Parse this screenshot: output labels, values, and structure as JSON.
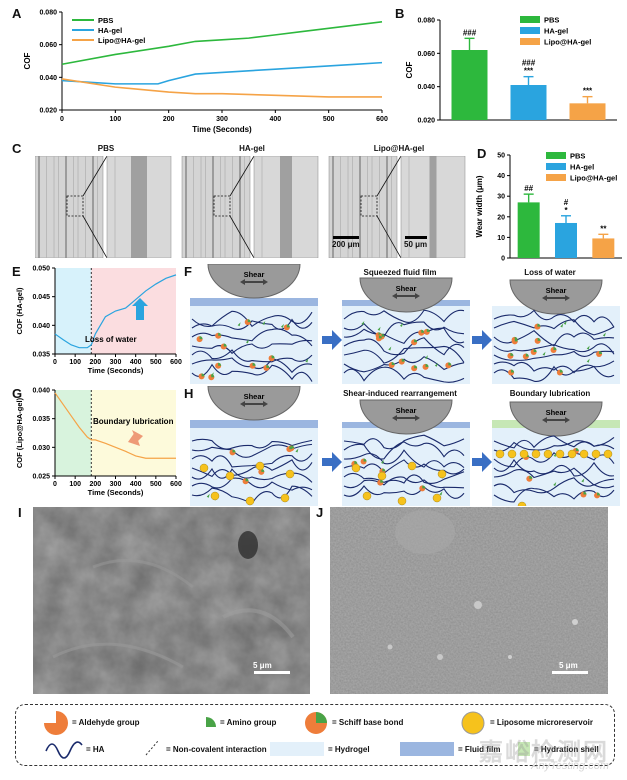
{
  "panels": {
    "A": "A",
    "B": "B",
    "C": "C",
    "D": "D",
    "E": "E",
    "F": "F",
    "G": "G",
    "H": "H",
    "I": "I",
    "J": "J"
  },
  "colors": {
    "pbs": "#2db83d",
    "hagel": "#2aa4df",
    "lipo": "#f5a347",
    "hydrogel": "#e3f0fa",
    "fluid": "#9bb6e0",
    "hydration": "#c6e7b5",
    "arrow": "#3a6fc4"
  },
  "chart_data": [
    {
      "type": "line",
      "ylabel": "COF",
      "xlabel": "Time (Seconds)",
      "xlim": [
        0,
        600
      ],
      "ylim": [
        0.02,
        0.08
      ],
      "xticks": [
        "0",
        "100",
        "200",
        "300",
        "400",
        "500",
        "600"
      ],
      "yticks": [
        "0.020",
        "0.040",
        "0.060",
        "0.080"
      ],
      "legend": "top-left",
      "series": [
        {
          "name": "PBS",
          "x": [
            0,
            100,
            200,
            250,
            300,
            350,
            400,
            450,
            500,
            550,
            600
          ],
          "y": [
            0.048,
            0.054,
            0.059,
            0.062,
            0.063,
            0.064,
            0.066,
            0.068,
            0.07,
            0.072,
            0.074
          ]
        },
        {
          "name": "HA-gel",
          "x": [
            0,
            100,
            180,
            200,
            250,
            300,
            350,
            400,
            450,
            500,
            550,
            600
          ],
          "y": [
            0.038,
            0.036,
            0.036,
            0.038,
            0.042,
            0.043,
            0.044,
            0.045,
            0.046,
            0.047,
            0.048,
            0.049
          ]
        },
        {
          "name": "Lipo@HA-gel",
          "x": [
            0,
            100,
            200,
            250,
            300,
            400,
            500,
            600
          ],
          "y": [
            0.039,
            0.034,
            0.031,
            0.03,
            0.03,
            0.029,
            0.028,
            0.028
          ]
        }
      ]
    },
    {
      "type": "bar",
      "ylabel": "COF",
      "ylim": [
        0.02,
        0.08
      ],
      "yticks": [
        "0.020",
        "0.040",
        "0.060",
        "0.080"
      ],
      "legend": "top-right",
      "categories": [
        "PBS",
        "HA-gel",
        "Lipo@HA-gel"
      ],
      "values": [
        0.062,
        0.041,
        0.03
      ],
      "errors": [
        0.007,
        0.005,
        0.004
      ],
      "annotations": [
        [
          "###"
        ],
        [
          "###",
          "***"
        ],
        [
          "***"
        ]
      ]
    },
    {
      "type": "bar",
      "ylabel": "Wear width (μm)",
      "ylim": [
        0,
        50
      ],
      "yticks": [
        "0",
        "10",
        "20",
        "30",
        "40",
        "50"
      ],
      "legend": "top-right",
      "categories": [
        "PBS",
        "HA-gel",
        "Lipo@HA-gel"
      ],
      "values": [
        27,
        17,
        9.5
      ],
      "errors": [
        4,
        3.5,
        2
      ],
      "annotations": [
        [
          "##"
        ],
        [
          "#",
          "*"
        ],
        [
          "**"
        ]
      ]
    },
    {
      "type": "line",
      "ylabel": "COF (HA-gel)",
      "xlabel": "Time (Seconds)",
      "xlim": [
        0,
        600
      ],
      "ylim": [
        0.035,
        0.05
      ],
      "xticks": [
        "0",
        "100",
        "200",
        "300",
        "400",
        "500",
        "600"
      ],
      "yticks": [
        "0.035",
        "0.040",
        "0.045",
        "0.050"
      ],
      "annotation": "Loss of water",
      "series": [
        {
          "x": [
            0,
            40,
            80,
            120,
            160,
            180,
            200,
            250,
            300,
            350,
            400,
            450,
            500,
            550,
            600
          ],
          "y": [
            0.0385,
            0.0375,
            0.0366,
            0.0361,
            0.0361,
            0.0366,
            0.0385,
            0.0415,
            0.0425,
            0.043,
            0.0445,
            0.046,
            0.0472,
            0.0482,
            0.0488
          ]
        }
      ]
    },
    {
      "type": "line",
      "ylabel": "COF (Lipo@HA-gel)",
      "xlabel": "Time (Seconds)",
      "xlim": [
        0,
        600
      ],
      "ylim": [
        0.025,
        0.04
      ],
      "xticks": [
        "0",
        "100",
        "200",
        "300",
        "400",
        "500",
        "600"
      ],
      "yticks": [
        "0.025",
        "0.030",
        "0.035",
        "0.040"
      ],
      "annotation": "Boundary lubrication",
      "series": [
        {
          "x": [
            0,
            40,
            80,
            120,
            160,
            180,
            200,
            250,
            300,
            350,
            400,
            450,
            500,
            550,
            600
          ],
          "y": [
            0.0395,
            0.0375,
            0.0355,
            0.0335,
            0.0318,
            0.0313,
            0.0313,
            0.0307,
            0.03,
            0.0293,
            0.0285,
            0.0281,
            0.0281,
            0.0281,
            0.0281
          ]
        }
      ]
    }
  ],
  "micro": {
    "titles": [
      "PBS",
      "HA-gel",
      "Lipo@HA-gel"
    ],
    "scale1": "200 μm",
    "scale2": "50 μm"
  },
  "schemes": {
    "shear": "Shear",
    "F_titles": [
      "",
      "Squeezed fluid film",
      "Loss of water"
    ],
    "H_titles": [
      "",
      "Shear-induced rearrangement",
      "Boundary lubrication"
    ]
  },
  "sem": {
    "scaleI": "5 μm",
    "scaleJ": "5 μm"
  },
  "legend": {
    "aldehyde": "= Aldehyde group",
    "amino": "= Amino group",
    "schiff": "= Schiff base bond",
    "liposome": "= Liposome microreservoir",
    "ha": "= HA",
    "noncov": "= Non-covalent interaction",
    "hydrogel": "= Hydrogel",
    "fluid": "= Fluid film",
    "hydration": "= Hydration shell"
  },
  "watermark": {
    "cn": "嘉峪检测网",
    "en": "AnyTesting.com"
  }
}
